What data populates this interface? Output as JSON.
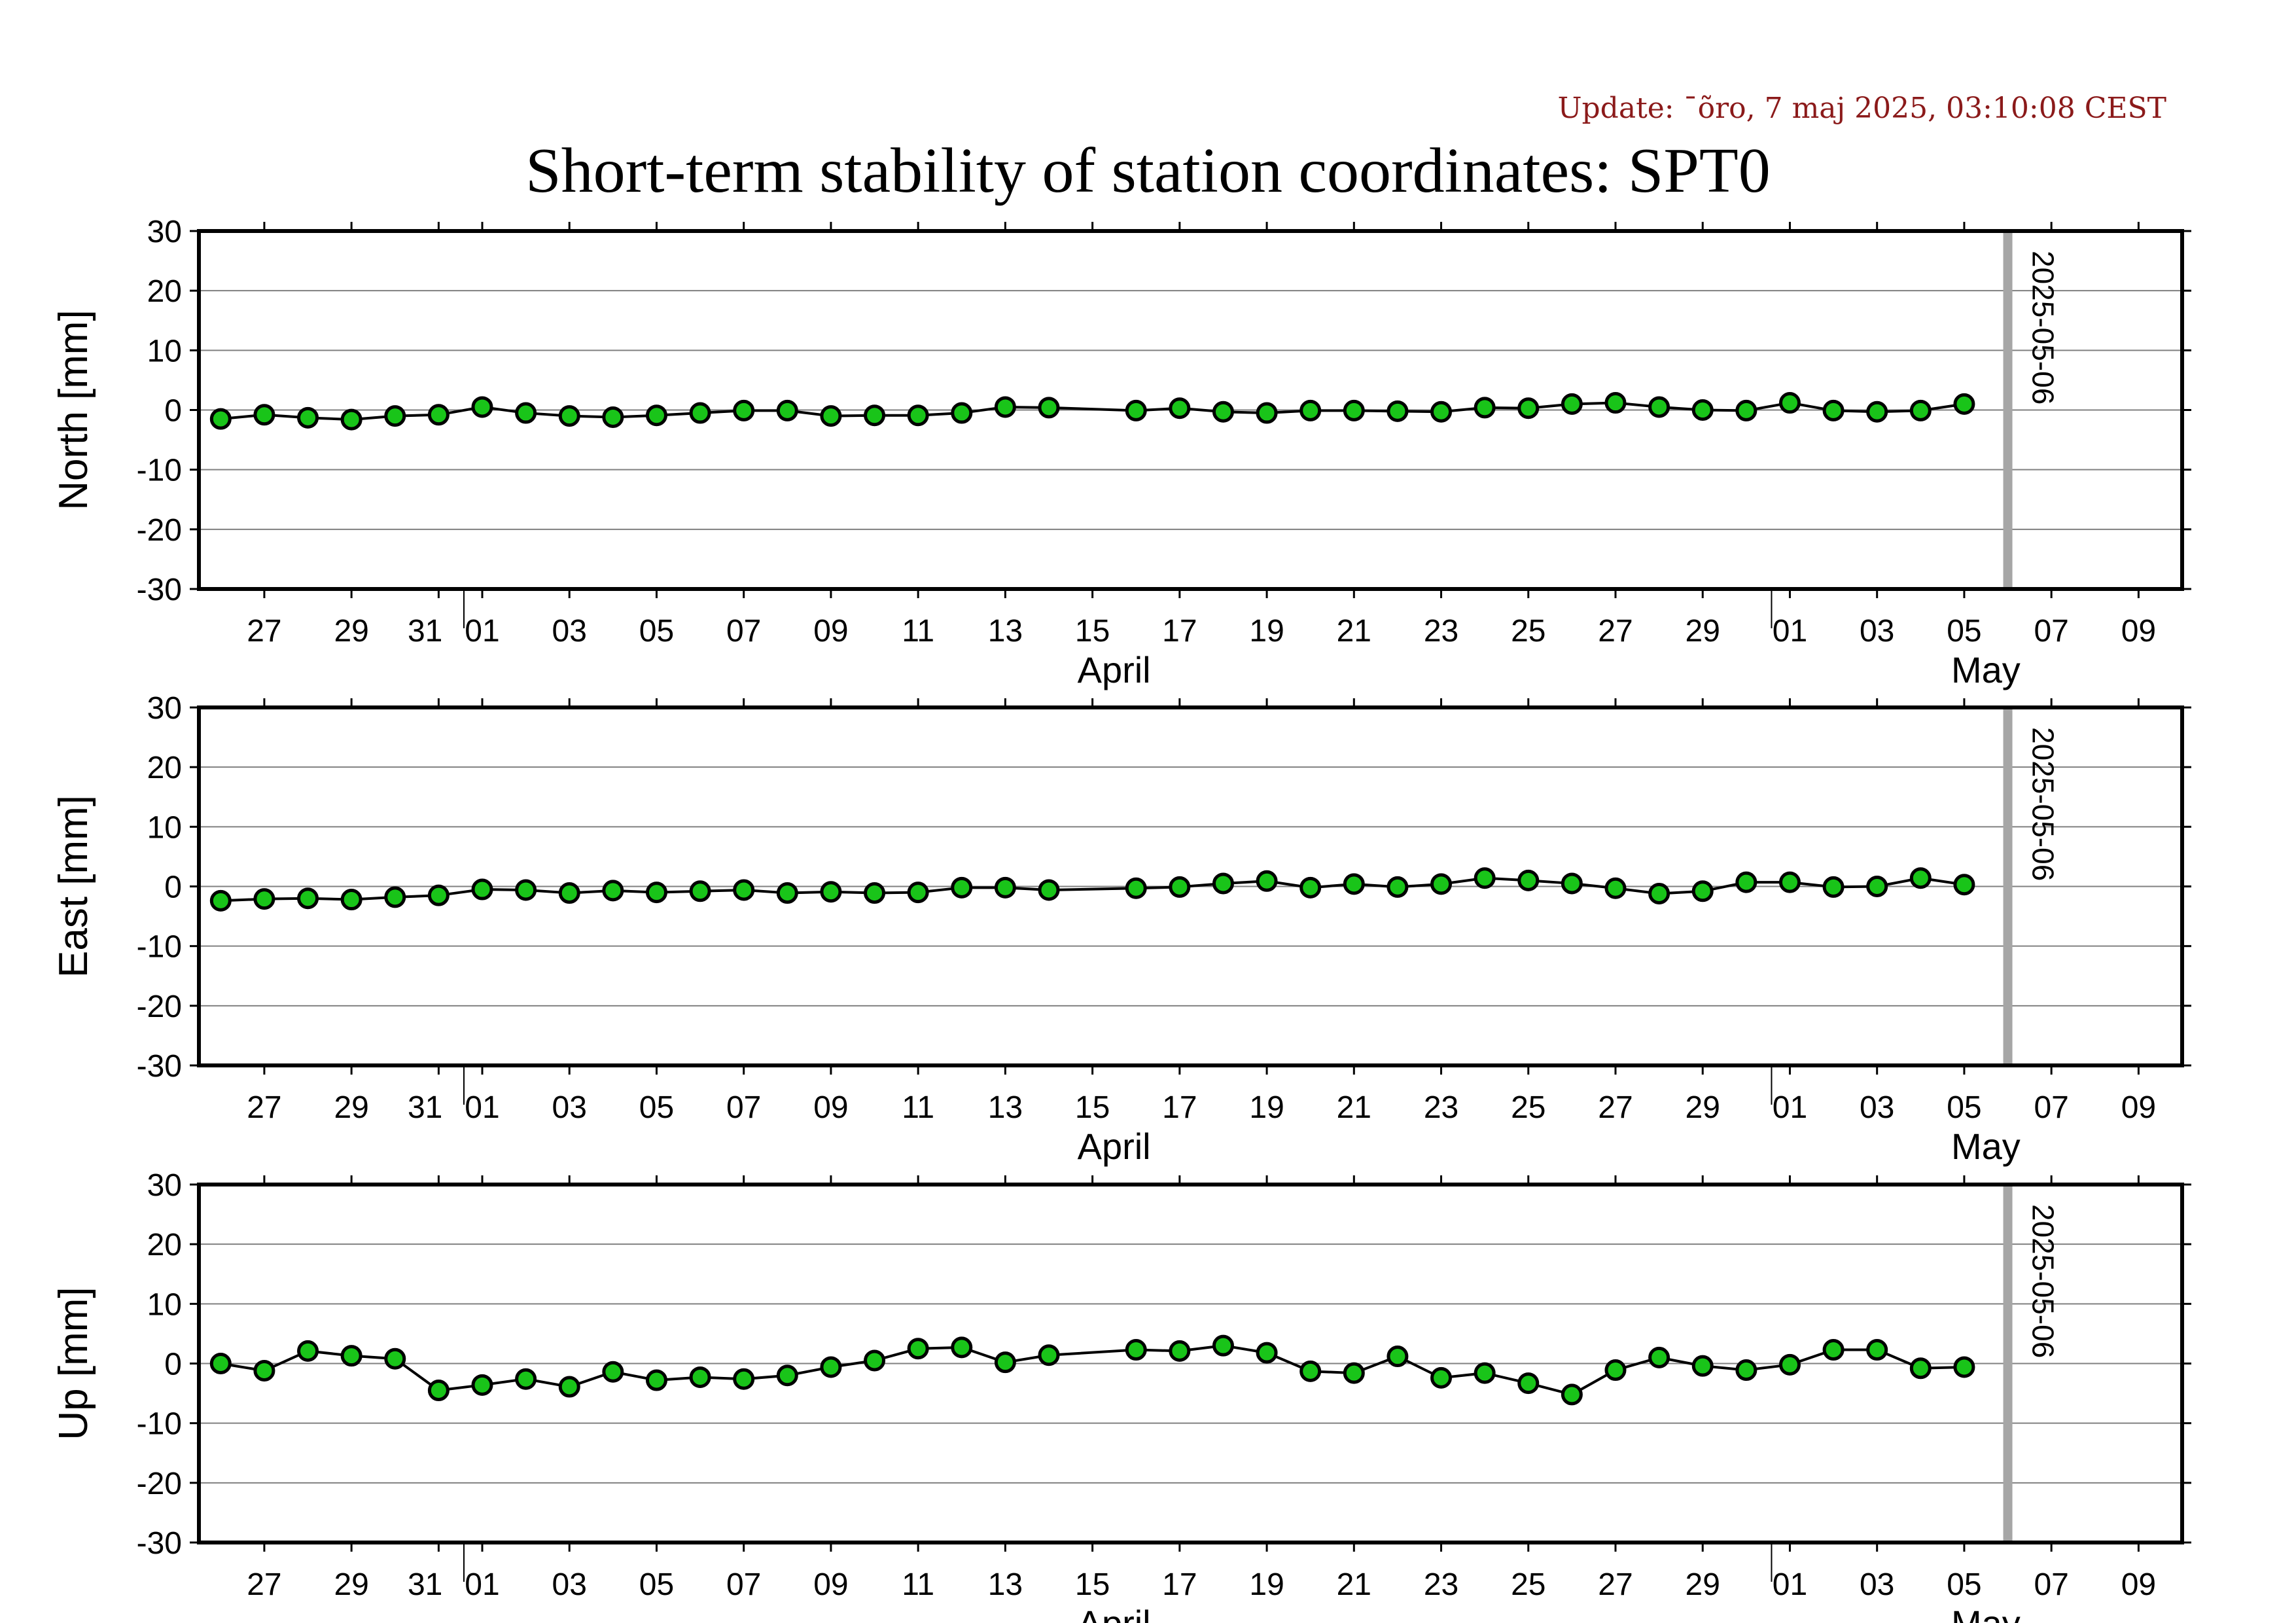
{
  "update_text": "Update: ¯õro, 7 maj 2025, 03:10:08 CEST",
  "title": "Short-term stability of station coordinates: SPT0",
  "chart_data": [
    {
      "type": "line",
      "ylabel": "North [mm]",
      "ylim": [
        -30,
        30
      ],
      "yticks": [
        -30,
        -20,
        -10,
        0,
        10,
        20,
        30
      ],
      "xlim": [
        "2025-03-25T12:00",
        "2025-05-10T00:00"
      ],
      "xtick_dates": [
        "2025-03-27",
        "2025-03-29",
        "2025-03-31",
        "2025-04-01",
        "2025-04-03",
        "2025-04-05",
        "2025-04-07",
        "2025-04-09",
        "2025-04-11",
        "2025-04-13",
        "2025-04-15",
        "2025-04-17",
        "2025-04-19",
        "2025-04-21",
        "2025-04-23",
        "2025-04-25",
        "2025-04-27",
        "2025-04-29",
        "2025-05-01",
        "2025-05-03",
        "2025-05-05",
        "2025-05-07",
        "2025-05-09"
      ],
      "xtick_labels": [
        "27",
        "29",
        "31",
        "01",
        "03",
        "05",
        "07",
        "09",
        "11",
        "13",
        "15",
        "17",
        "19",
        "21",
        "23",
        "25",
        "27",
        "29",
        "01",
        "03",
        "05",
        "07",
        "09"
      ],
      "month_labels": [
        {
          "date": "2025-04-15",
          "label": "April"
        },
        {
          "date": "2025-05-05",
          "label": "May"
        }
      ],
      "marker_date": "2025-05-06",
      "marker_label": "2025-05-06",
      "grid": true,
      "x": [
        "2025-03-26",
        "2025-03-27",
        "2025-03-28",
        "2025-03-29",
        "2025-03-30",
        "2025-03-31",
        "2025-04-01",
        "2025-04-02",
        "2025-04-03",
        "2025-04-04",
        "2025-04-05",
        "2025-04-06",
        "2025-04-07",
        "2025-04-08",
        "2025-04-09",
        "2025-04-10",
        "2025-04-11",
        "2025-04-12",
        "2025-04-13",
        "2025-04-14",
        "2025-04-16",
        "2025-04-17",
        "2025-04-18",
        "2025-04-19",
        "2025-04-20",
        "2025-04-21",
        "2025-04-22",
        "2025-04-23",
        "2025-04-24",
        "2025-04-25",
        "2025-04-26",
        "2025-04-27",
        "2025-04-28",
        "2025-04-29",
        "2025-04-30",
        "2025-05-01",
        "2025-05-02",
        "2025-05-03",
        "2025-05-04",
        "2025-05-05"
      ],
      "y": [
        -1.5,
        -0.8,
        -1.3,
        -1.6,
        -1.0,
        -0.8,
        0.5,
        -0.5,
        -1.0,
        -1.2,
        -0.9,
        -0.5,
        -0.1,
        -0.1,
        -1.0,
        -0.9,
        -0.9,
        -0.5,
        0.5,
        0.4,
        -0.1,
        0.3,
        -0.3,
        -0.5,
        -0.1,
        -0.1,
        -0.2,
        -0.3,
        0.4,
        0.3,
        1.0,
        1.2,
        0.5,
        0.0,
        -0.1,
        1.2,
        -0.1,
        -0.3,
        -0.1,
        1.0
      ]
    },
    {
      "type": "line",
      "ylabel": "East [mm]",
      "ylim": [
        -30,
        30
      ],
      "yticks": [
        -30,
        -20,
        -10,
        0,
        10,
        20,
        30
      ],
      "xlim": [
        "2025-03-25T12:00",
        "2025-05-10T00:00"
      ],
      "xtick_dates": [
        "2025-03-27",
        "2025-03-29",
        "2025-03-31",
        "2025-04-01",
        "2025-04-03",
        "2025-04-05",
        "2025-04-07",
        "2025-04-09",
        "2025-04-11",
        "2025-04-13",
        "2025-04-15",
        "2025-04-17",
        "2025-04-19",
        "2025-04-21",
        "2025-04-23",
        "2025-04-25",
        "2025-04-27",
        "2025-04-29",
        "2025-05-01",
        "2025-05-03",
        "2025-05-05",
        "2025-05-07",
        "2025-05-09"
      ],
      "xtick_labels": [
        "27",
        "29",
        "31",
        "01",
        "03",
        "05",
        "07",
        "09",
        "11",
        "13",
        "15",
        "17",
        "19",
        "21",
        "23",
        "25",
        "27",
        "29",
        "01",
        "03",
        "05",
        "07",
        "09"
      ],
      "month_labels": [
        {
          "date": "2025-04-15",
          "label": "April"
        },
        {
          "date": "2025-05-05",
          "label": "May"
        }
      ],
      "marker_date": "2025-05-06",
      "marker_label": "2025-05-06",
      "grid": true,
      "x": [
        "2025-03-26",
        "2025-03-27",
        "2025-03-28",
        "2025-03-29",
        "2025-03-30",
        "2025-03-31",
        "2025-04-01",
        "2025-04-02",
        "2025-04-03",
        "2025-04-04",
        "2025-04-05",
        "2025-04-06",
        "2025-04-07",
        "2025-04-08",
        "2025-04-09",
        "2025-04-10",
        "2025-04-11",
        "2025-04-12",
        "2025-04-13",
        "2025-04-14",
        "2025-04-16",
        "2025-04-17",
        "2025-04-18",
        "2025-04-19",
        "2025-04-20",
        "2025-04-21",
        "2025-04-22",
        "2025-04-23",
        "2025-04-24",
        "2025-04-25",
        "2025-04-26",
        "2025-04-27",
        "2025-04-28",
        "2025-04-29",
        "2025-04-30",
        "2025-05-01",
        "2025-05-02",
        "2025-05-03",
        "2025-05-04",
        "2025-05-05"
      ],
      "y": [
        -2.4,
        -2.1,
        -2.0,
        -2.2,
        -1.8,
        -1.5,
        -0.5,
        -0.6,
        -1.1,
        -0.7,
        -1.0,
        -0.8,
        -0.6,
        -1.1,
        -0.9,
        -1.1,
        -1.0,
        -0.2,
        -0.2,
        -0.6,
        -0.3,
        -0.1,
        0.5,
        0.9,
        -0.2,
        0.4,
        -0.1,
        0.4,
        1.4,
        1.0,
        0.5,
        -0.3,
        -1.2,
        -0.8,
        0.7,
        0.7,
        -0.1,
        0.0,
        1.4,
        0.3
      ]
    },
    {
      "type": "line",
      "ylabel": "Up [mm]",
      "ylim": [
        -30,
        30
      ],
      "yticks": [
        -30,
        -20,
        -10,
        0,
        10,
        20,
        30
      ],
      "xlim": [
        "2025-03-25T12:00",
        "2025-05-10T00:00"
      ],
      "xtick_dates": [
        "2025-03-27",
        "2025-03-29",
        "2025-03-31",
        "2025-04-01",
        "2025-04-03",
        "2025-04-05",
        "2025-04-07",
        "2025-04-09",
        "2025-04-11",
        "2025-04-13",
        "2025-04-15",
        "2025-04-17",
        "2025-04-19",
        "2025-04-21",
        "2025-04-23",
        "2025-04-25",
        "2025-04-27",
        "2025-04-29",
        "2025-05-01",
        "2025-05-03",
        "2025-05-05",
        "2025-05-07",
        "2025-05-09"
      ],
      "xtick_labels": [
        "27",
        "29",
        "31",
        "01",
        "03",
        "05",
        "07",
        "09",
        "11",
        "13",
        "15",
        "17",
        "19",
        "21",
        "23",
        "25",
        "27",
        "29",
        "01",
        "03",
        "05",
        "07",
        "09"
      ],
      "month_labels": [
        {
          "date": "2025-04-15",
          "label": "April"
        },
        {
          "date": "2025-05-05",
          "label": "May"
        }
      ],
      "marker_date": "2025-05-06",
      "marker_label": "2025-05-06",
      "grid": true,
      "x": [
        "2025-03-26",
        "2025-03-27",
        "2025-03-28",
        "2025-03-29",
        "2025-03-30",
        "2025-03-31",
        "2025-04-01",
        "2025-04-02",
        "2025-04-03",
        "2025-04-04",
        "2025-04-05",
        "2025-04-06",
        "2025-04-07",
        "2025-04-08",
        "2025-04-09",
        "2025-04-10",
        "2025-04-11",
        "2025-04-12",
        "2025-04-13",
        "2025-04-14",
        "2025-04-16",
        "2025-04-17",
        "2025-04-18",
        "2025-04-19",
        "2025-04-20",
        "2025-04-21",
        "2025-04-22",
        "2025-04-23",
        "2025-04-24",
        "2025-04-25",
        "2025-04-26",
        "2025-04-27",
        "2025-04-28",
        "2025-04-29",
        "2025-04-30",
        "2025-05-01",
        "2025-05-02",
        "2025-05-03",
        "2025-05-04",
        "2025-05-05"
      ],
      "y": [
        0.0,
        -1.2,
        2.1,
        1.3,
        0.8,
        -4.5,
        -3.6,
        -2.6,
        -3.9,
        -1.4,
        -2.8,
        -2.3,
        -2.6,
        -2.0,
        -0.6,
        0.5,
        2.5,
        2.7,
        0.2,
        1.4,
        2.3,
        2.1,
        3.0,
        1.8,
        -1.3,
        -1.6,
        1.2,
        -2.4,
        -1.6,
        -3.3,
        -5.2,
        -1.1,
        1.0,
        -0.4,
        -1.1,
        -0.2,
        2.3,
        2.3,
        -0.8,
        -0.6
      ]
    }
  ],
  "colors": {
    "marker_fill": "#19c419",
    "marker_stroke": "#000000",
    "line": "#000000",
    "grid": "#808080",
    "marker_bar": "#a6a6a6",
    "update_text": "#8b1a1a"
  }
}
